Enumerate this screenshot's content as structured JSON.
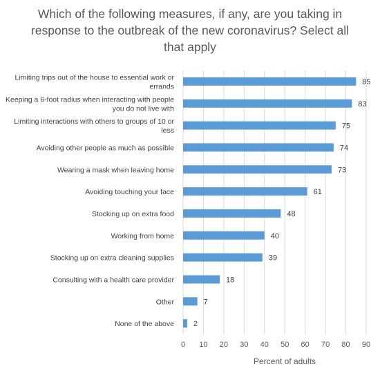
{
  "chart_data": {
    "type": "bar",
    "orientation": "horizontal",
    "title_lines": [
      "Which of the following measures, if any, are you taking in",
      "response to the outbreak of the new coronavirus? Select all",
      "that apply"
    ],
    "xlabel": "Percent of adults",
    "ylabel": "",
    "xlim": [
      0,
      90
    ],
    "xticks": [
      0,
      10,
      20,
      30,
      40,
      50,
      60,
      70,
      80,
      90
    ],
    "grid": true,
    "legend": "none",
    "bar_color": "#5b9bd5",
    "categories": [
      [
        "Limiting trips out of the house to essential work or",
        "errands"
      ],
      [
        "Keeping a 6-foot radius when interacting with people",
        "you do not live with"
      ],
      [
        "Limiting interactions with others to groups of 10 or",
        "less"
      ],
      [
        "Avoiding other people as much as possible"
      ],
      [
        "Wearing a mask when leaving home"
      ],
      [
        "Avoiding touching your face"
      ],
      [
        "Stocking up on extra food"
      ],
      [
        "Working from home"
      ],
      [
        "Stocking up on extra cleaning supplies"
      ],
      [
        "Consulting with a health care provider"
      ],
      [
        "Other"
      ],
      [
        "None of the above"
      ]
    ],
    "values": [
      85,
      83,
      75,
      74,
      73,
      61,
      48,
      40,
      39,
      18,
      7,
      2
    ]
  }
}
